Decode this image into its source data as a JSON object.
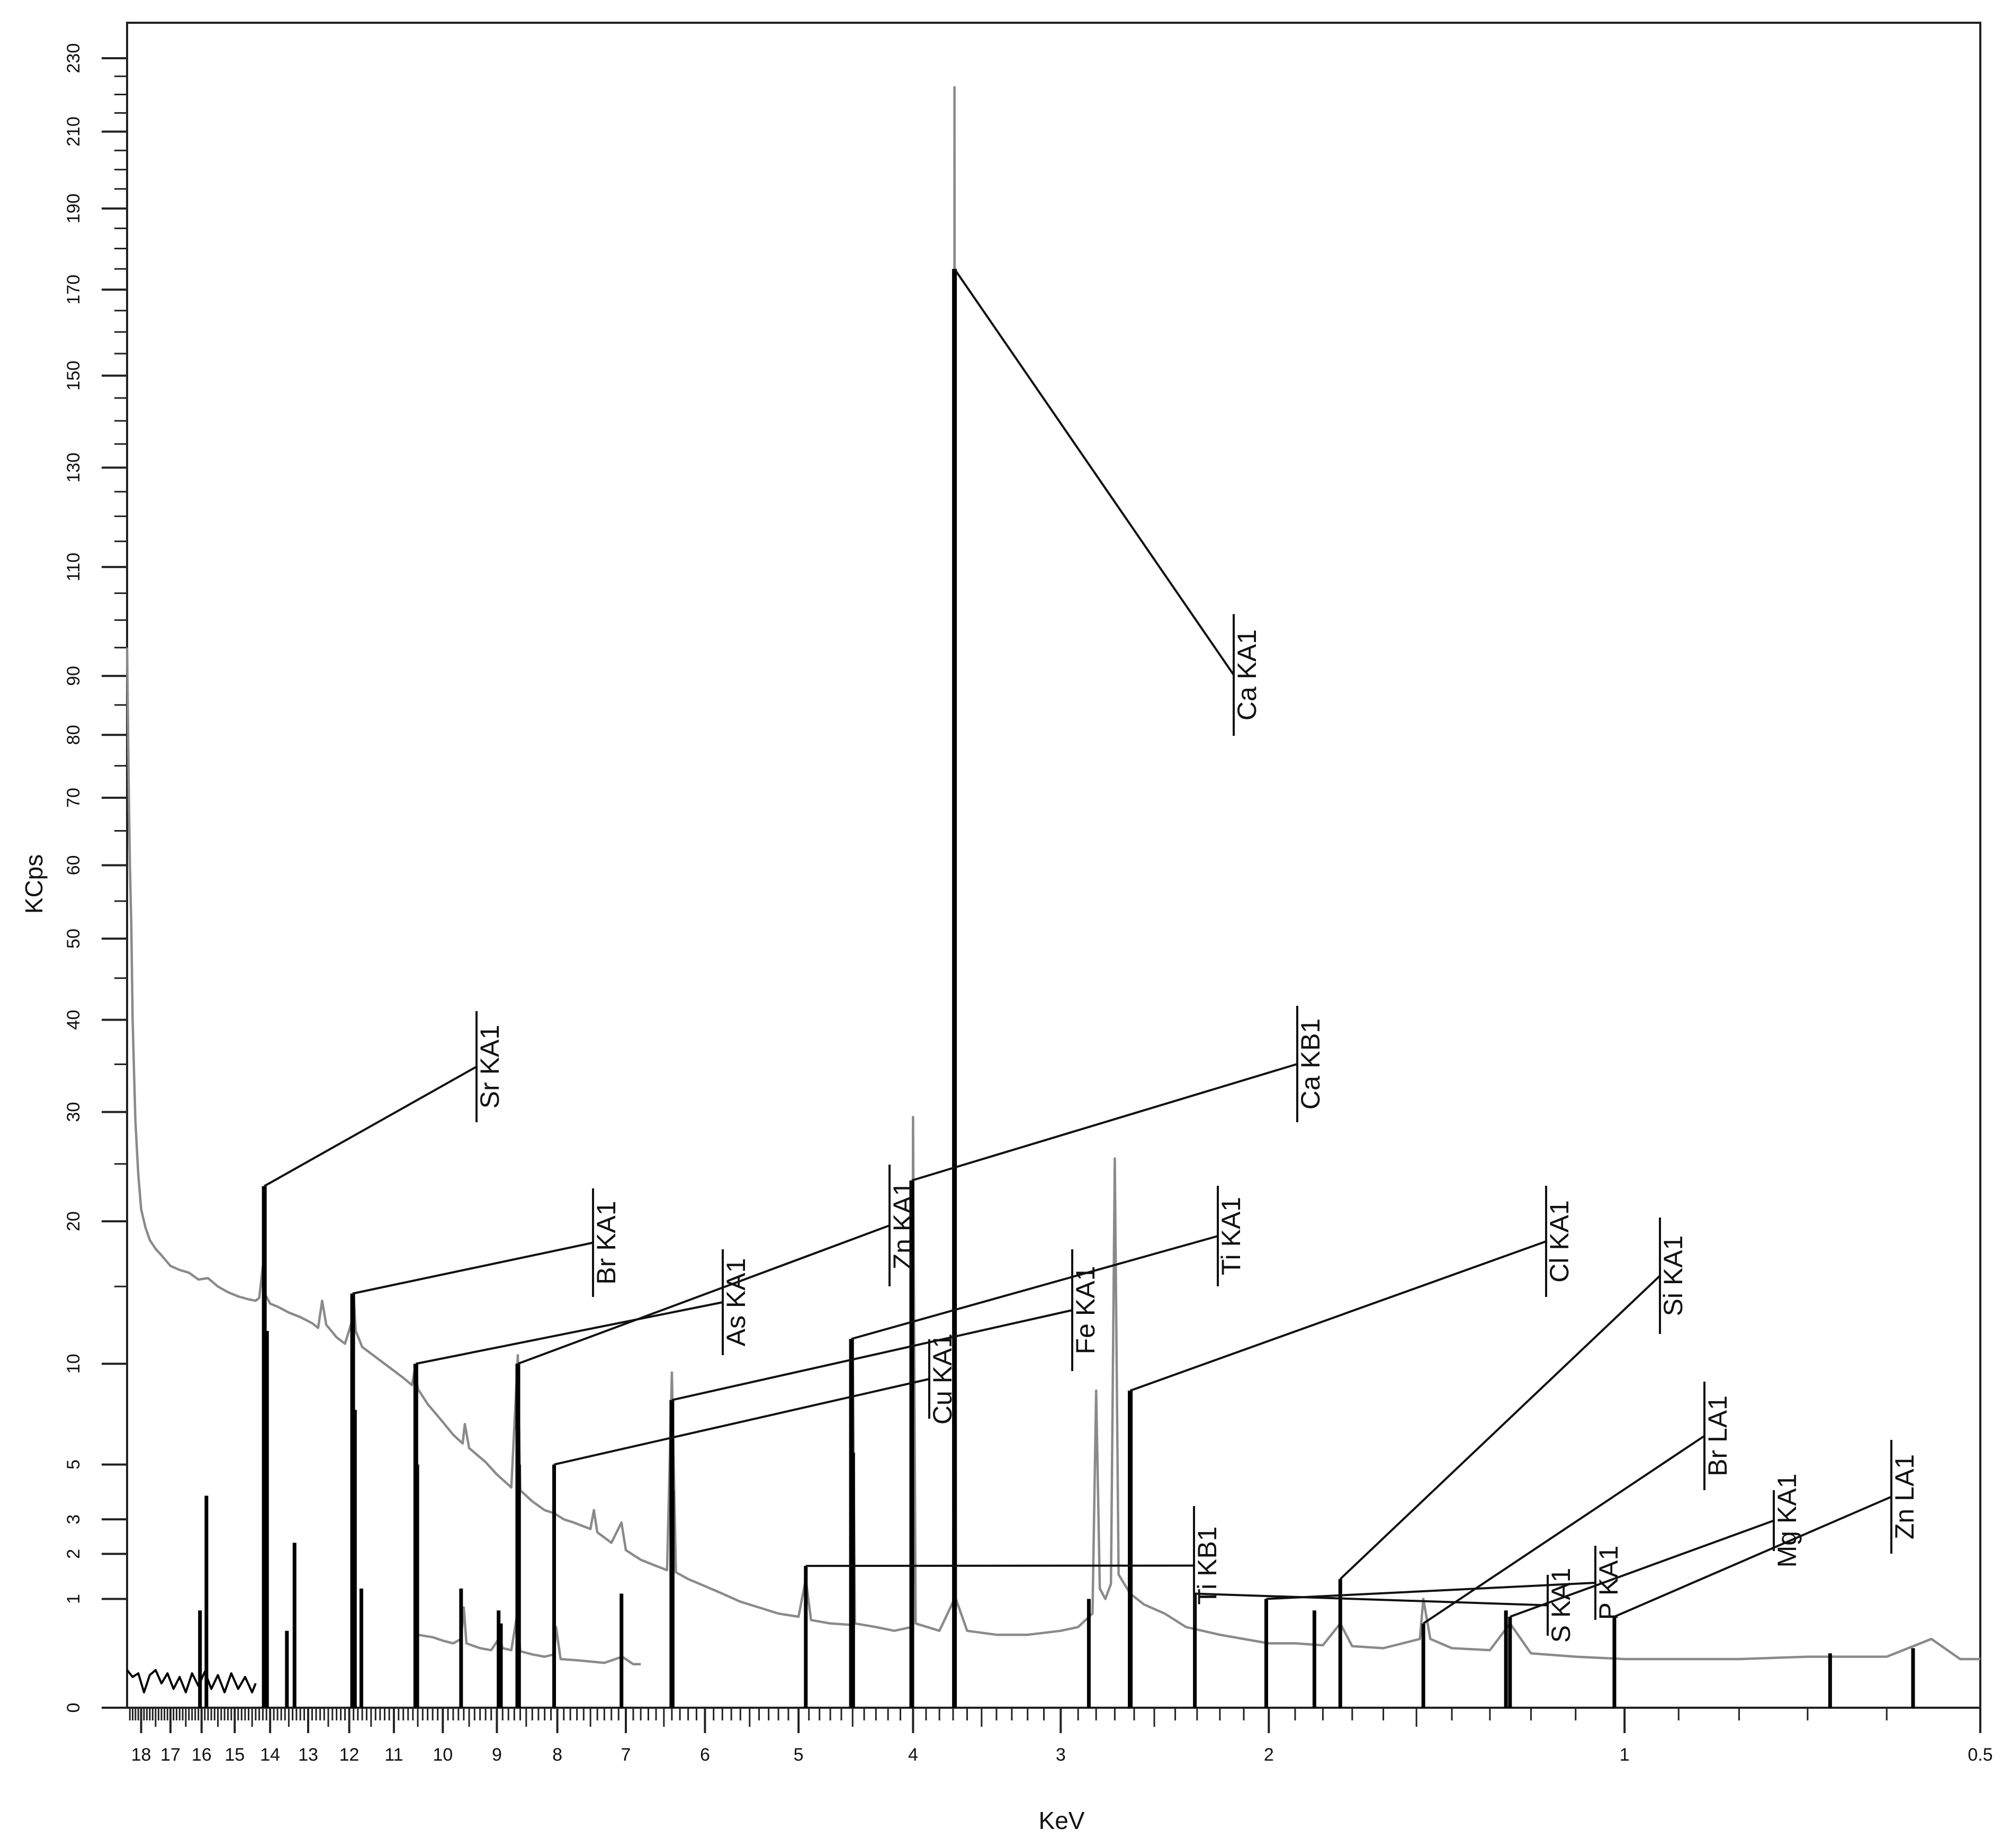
{
  "chart_data": {
    "type": "line",
    "xlabel": "KeV",
    "ylabel": "KCps",
    "x_axis": {
      "reversed": true,
      "range": [
        0.5,
        18.5
      ],
      "scale": "log",
      "ticks": [
        18,
        17,
        16,
        15,
        14,
        13,
        12,
        11,
        10,
        9,
        8,
        7,
        6,
        5,
        4,
        3,
        2,
        1,
        0.5
      ],
      "tick_labels": [
        "18",
        "17",
        "16",
        "15",
        "14",
        "13",
        "12",
        "11",
        "10",
        "9",
        "8",
        "7",
        "6",
        "5",
        "4",
        "3",
        "2",
        "1",
        "0.5"
      ]
    },
    "y_axis": {
      "scale": "square-root",
      "range": [
        0,
        240
      ],
      "ticks": [
        0,
        1,
        2,
        3,
        5,
        10,
        20,
        30,
        40,
        50,
        60,
        70,
        80,
        90,
        110,
        130,
        150,
        170,
        190,
        210,
        230
      ],
      "tick_labels": [
        "0",
        "1",
        "2",
        "3",
        "5",
        "10",
        "20",
        "30",
        "40",
        "50",
        "60",
        "70",
        "80",
        "90",
        "110",
        "130",
        "150",
        "170",
        "190",
        "210",
        "230"
      ]
    },
    "grid": false,
    "colors": {
      "measured": "#8a8a8a",
      "reference": "#000000"
    },
    "series": [
      {
        "style": "measured spectrum (gray line)",
        "points": [
          [
            18.5,
            95
          ],
          [
            18.45,
            75
          ],
          [
            18.4,
            60
          ],
          [
            18.35,
            52
          ],
          [
            18.3,
            40
          ],
          [
            18.25,
            34
          ],
          [
            18.2,
            29
          ],
          [
            18.1,
            24
          ],
          [
            18.0,
            21
          ],
          [
            17.85,
            19.5
          ],
          [
            17.7,
            18.5
          ],
          [
            17.5,
            17.8
          ],
          [
            17.3,
            17.3
          ],
          [
            17.0,
            16.5
          ],
          [
            16.7,
            16.2
          ],
          [
            16.4,
            16.0
          ],
          [
            16.1,
            15.5
          ],
          [
            15.8,
            15.6
          ],
          [
            15.5,
            15.0
          ],
          [
            15.2,
            14.6
          ],
          [
            14.9,
            14.3
          ],
          [
            14.6,
            14.1
          ],
          [
            14.4,
            14.0
          ],
          [
            14.3,
            14.2
          ],
          [
            14.2,
            16.5
          ],
          [
            14.15,
            14.5
          ],
          [
            14.0,
            13.8
          ],
          [
            13.8,
            13.6
          ],
          [
            13.5,
            13.2
          ],
          [
            13.2,
            12.9
          ],
          [
            12.9,
            12.5
          ],
          [
            12.75,
            12.2
          ],
          [
            12.65,
            14.0
          ],
          [
            12.55,
            12.4
          ],
          [
            12.3,
            11.6
          ],
          [
            12.1,
            11.2
          ],
          [
            11.95,
            12.5
          ],
          [
            11.9,
            14.5
          ],
          [
            11.85,
            12.0
          ],
          [
            11.7,
            11.0
          ],
          [
            11.5,
            10.6
          ],
          [
            11.2,
            10.0
          ],
          [
            11.0,
            9.6
          ],
          [
            10.8,
            9.2
          ],
          [
            10.62,
            8.8
          ],
          [
            10.55,
            9.8
          ],
          [
            10.5,
            8.6
          ],
          [
            10.3,
            7.8
          ],
          [
            10.0,
            6.9
          ],
          [
            9.8,
            6.3
          ],
          [
            9.62,
            5.9
          ],
          [
            9.58,
            6.8
          ],
          [
            9.5,
            5.7
          ],
          [
            9.2,
            5.1
          ],
          [
            9.0,
            4.6
          ],
          [
            8.9,
            4.4
          ],
          [
            8.75,
            4.1
          ],
          [
            8.64,
            10.5
          ],
          [
            8.6,
            4.0
          ],
          [
            8.4,
            3.6
          ],
          [
            8.2,
            3.3
          ],
          [
            8.05,
            3.2
          ],
          [
            7.9,
            3.0
          ],
          [
            7.75,
            2.9
          ],
          [
            7.5,
            2.7
          ],
          [
            7.45,
            3.3
          ],
          [
            7.4,
            2.6
          ],
          [
            7.2,
            2.3
          ],
          [
            7.06,
            2.9
          ],
          [
            7.0,
            2.1
          ],
          [
            6.8,
            1.85
          ],
          [
            6.6,
            1.7
          ],
          [
            6.46,
            1.6
          ],
          [
            6.4,
            9.5
          ],
          [
            6.35,
            1.55
          ],
          [
            6.2,
            1.4
          ],
          [
            6.0,
            1.25
          ],
          [
            5.8,
            1.1
          ],
          [
            5.6,
            0.95
          ],
          [
            5.4,
            0.85
          ],
          [
            5.2,
            0.75
          ],
          [
            5.0,
            0.7
          ],
          [
            4.93,
            1.4
          ],
          [
            4.88,
            0.65
          ],
          [
            4.7,
            0.6
          ],
          [
            4.51,
            0.58
          ],
          [
            4.5,
            11.5
          ],
          [
            4.48,
            0.6
          ],
          [
            4.3,
            0.55
          ],
          [
            4.15,
            0.5
          ],
          [
            4.01,
            0.55
          ],
          [
            4.0,
            29.5
          ],
          [
            3.98,
            0.6
          ],
          [
            3.8,
            0.5
          ],
          [
            3.69,
            1.0
          ],
          [
            3.69,
            222
          ],
          [
            3.68,
            1.0
          ],
          [
            3.6,
            0.5
          ],
          [
            3.4,
            0.45
          ],
          [
            3.2,
            0.45
          ],
          [
            3.0,
            0.5
          ],
          [
            2.9,
            0.55
          ],
          [
            2.82,
            0.75
          ],
          [
            2.8,
            8.5
          ],
          [
            2.78,
            1.2
          ],
          [
            2.75,
            1.0
          ],
          [
            2.72,
            1.3
          ],
          [
            2.7,
            25.5
          ],
          [
            2.68,
            1.5
          ],
          [
            2.62,
            1.1
          ],
          [
            2.55,
            0.9
          ],
          [
            2.45,
            0.75
          ],
          [
            2.35,
            0.55
          ],
          [
            2.2,
            0.45
          ],
          [
            2.1,
            0.4
          ],
          [
            2.0,
            0.35
          ],
          [
            1.9,
            0.35
          ],
          [
            1.8,
            0.33
          ],
          [
            1.74,
            0.6
          ],
          [
            1.7,
            0.32
          ],
          [
            1.6,
            0.3
          ],
          [
            1.49,
            0.4
          ],
          [
            1.48,
            1.0
          ],
          [
            1.46,
            0.4
          ],
          [
            1.4,
            0.3
          ],
          [
            1.3,
            0.28
          ],
          [
            1.25,
            0.6
          ],
          [
            1.2,
            0.25
          ],
          [
            1.1,
            0.22
          ],
          [
            1.0,
            0.2
          ],
          [
            0.9,
            0.2
          ],
          [
            0.8,
            0.2
          ],
          [
            0.7,
            0.22
          ],
          [
            0.6,
            0.22
          ],
          [
            0.55,
            0.4
          ],
          [
            0.52,
            0.2
          ],
          [
            0.5,
            0.2
          ]
        ]
      },
      {
        "style": "secondary trace 10.5–6.8 keV (gray line)",
        "points": [
          [
            10.5,
            0.45
          ],
          [
            10.2,
            0.42
          ],
          [
            10.0,
            0.38
          ],
          [
            9.8,
            0.35
          ],
          [
            9.65,
            0.4
          ],
          [
            9.6,
            0.85
          ],
          [
            9.55,
            0.35
          ],
          [
            9.3,
            0.3
          ],
          [
            9.1,
            0.28
          ],
          [
            8.95,
            0.42
          ],
          [
            8.9,
            0.3
          ],
          [
            8.75,
            0.28
          ],
          [
            8.65,
            0.75
          ],
          [
            8.6,
            0.27
          ],
          [
            8.4,
            0.24
          ],
          [
            8.2,
            0.22
          ],
          [
            8.05,
            0.24
          ],
          [
            8.02,
            0.55
          ],
          [
            7.95,
            0.2
          ],
          [
            7.7,
            0.19
          ],
          [
            7.5,
            0.18
          ],
          [
            7.3,
            0.17
          ],
          [
            7.05,
            0.22
          ],
          [
            6.9,
            0.16
          ],
          [
            6.8,
            0.16
          ]
        ]
      },
      {
        "style": "baseline trace 18.5–14.4 keV (black line)",
        "points": [
          [
            18.5,
            0.12
          ],
          [
            18.3,
            0.08
          ],
          [
            18.1,
            0.1
          ],
          [
            17.9,
            0.02
          ],
          [
            17.7,
            0.09
          ],
          [
            17.5,
            0.12
          ],
          [
            17.3,
            0.05
          ],
          [
            17.1,
            0.1
          ],
          [
            16.9,
            0.03
          ],
          [
            16.7,
            0.08
          ],
          [
            16.5,
            0.02
          ],
          [
            16.3,
            0.1
          ],
          [
            16.1,
            0.04
          ],
          [
            15.9,
            0.11
          ],
          [
            15.7,
            0.03
          ],
          [
            15.5,
            0.09
          ],
          [
            15.3,
            0.02
          ],
          [
            15.1,
            0.1
          ],
          [
            14.9,
            0.03
          ],
          [
            14.7,
            0.08
          ],
          [
            14.5,
            0.02
          ],
          [
            14.4,
            0.05
          ]
        ]
      },
      {
        "style": "reference line markers (black vertical bars)",
        "lines": [
          [
            16.05,
            0.8
          ],
          [
            15.85,
            3.8
          ],
          [
            14.16,
            23
          ],
          [
            14.1,
            12
          ],
          [
            13.55,
            0.5
          ],
          [
            13.35,
            2.3
          ],
          [
            11.92,
            14.5
          ],
          [
            11.88,
            7.5
          ],
          [
            11.72,
            1.2
          ],
          [
            10.54,
            10
          ],
          [
            10.51,
            5
          ],
          [
            9.65,
            1.2
          ],
          [
            8.97,
            0.8
          ],
          [
            8.93,
            0.6
          ],
          [
            8.64,
            10
          ],
          [
            8.62,
            5
          ],
          [
            8.05,
            5
          ],
          [
            7.06,
            1.1
          ],
          [
            6.4,
            8
          ],
          [
            6.39,
            4
          ],
          [
            4.93,
            1.7
          ],
          [
            4.51,
            11.5
          ],
          [
            4.5,
            5.5
          ],
          [
            4.01,
            23.5
          ],
          [
            3.69,
            175
          ],
          [
            2.84,
            1.0
          ],
          [
            2.62,
            8.5
          ],
          [
            2.31,
            1.1
          ],
          [
            2.01,
            1.0
          ],
          [
            1.83,
            0.8
          ],
          [
            1.74,
            1.4
          ],
          [
            1.48,
            0.6
          ],
          [
            1.26,
            0.8
          ],
          [
            1.25,
            0.7
          ],
          [
            1.02,
            0.7
          ],
          [
            0.67,
            0.25
          ],
          [
            0.57,
            0.3
          ]
        ]
      }
    ],
    "annotations": [
      {
        "text": "Sr KA1",
        "x": 14.16,
        "y": 23
      },
      {
        "text": "Br KA1",
        "x": 11.92,
        "y": 14.5
      },
      {
        "text": "As KA1",
        "x": 10.54,
        "y": 10
      },
      {
        "text": "Zn KA1",
        "x": 8.64,
        "y": 10
      },
      {
        "text": "Cu KA1",
        "x": 8.05,
        "y": 5
      },
      {
        "text": "Fe KA1",
        "x": 6.4,
        "y": 8
      },
      {
        "text": "Ti KB1",
        "x": 4.93,
        "y": 1.7
      },
      {
        "text": "Ti KA1",
        "x": 4.51,
        "y": 11.5
      },
      {
        "text": "Ca KB1",
        "x": 4.01,
        "y": 23.5
      },
      {
        "text": "Ca KA1",
        "x": 3.69,
        "y": 175
      },
      {
        "text": "Cl KA1",
        "x": 2.62,
        "y": 8.5
      },
      {
        "text": "S KA1",
        "x": 2.31,
        "y": 1.1
      },
      {
        "text": "P KA1",
        "x": 2.01,
        "y": 1.0
      },
      {
        "text": "Si KA1",
        "x": 1.74,
        "y": 1.4
      },
      {
        "text": "Br LA1",
        "x": 1.48,
        "y": 0.6
      },
      {
        "text": "Mg KA1",
        "x": 1.25,
        "y": 0.7
      },
      {
        "text": "Zn LA1",
        "x": 1.02,
        "y": 0.7
      }
    ]
  }
}
